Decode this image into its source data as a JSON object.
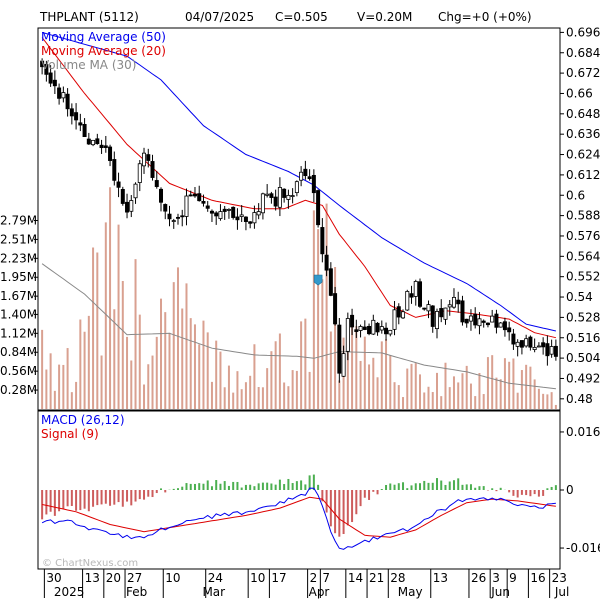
{
  "header": {
    "symbol": "THPLANT (5112)",
    "date": "04/07/2025",
    "close": "C=0.505",
    "volume": "V=0.20M",
    "change": "Chg=+0 (+0%)"
  },
  "legend": {
    "ma50": "Moving Average (50)",
    "ma20": "Moving Average (20)",
    "vol_ma": "Volume MA (30)",
    "macd": "MACD (26,12)",
    "signal": "Signal (9)"
  },
  "watermark": "© ChartNexus.com",
  "colors": {
    "up": "#ffffff",
    "down": "#000000",
    "ma50": "#0000ee",
    "ma20": "#dd0000",
    "volume_bar": "#d9a090",
    "vol_ma_line": "#888888",
    "hist_pos": "#4caf50",
    "hist_neg": "#cd5c5c",
    "marker": "#3399cc"
  },
  "chart_data": [
    {
      "type": "candlestick",
      "title": "THPLANT (5112)",
      "price_axis_ticks": [
        "0.696",
        "0.684",
        "0.672",
        "0.66",
        "0.648",
        "0.636",
        "0.624",
        "0.612",
        "0.6",
        "0.588",
        "0.576",
        "0.564",
        "0.552",
        "0.54",
        "0.528",
        "0.516",
        "0.504",
        "0.492",
        "0.48"
      ],
      "volume_axis_ticks": [
        "2.79M",
        "2.51M",
        "2.23M",
        "1.95M",
        "1.67M",
        "1.40M",
        "1.12M",
        "0.84M",
        "0.56M",
        "0.28M"
      ],
      "ylim": [
        0.474,
        0.698
      ],
      "last_close": 0.505,
      "series_names": [
        "Moving Average (50)",
        "Moving Average (20)",
        "Volume MA (30)"
      ],
      "close_keypoints": [
        {
          "day": 0,
          "close": 0.675
        },
        {
          "day": 5,
          "close": 0.655
        },
        {
          "day": 10,
          "close": 0.635
        },
        {
          "day": 15,
          "close": 0.625
        },
        {
          "day": 20,
          "close": 0.595
        },
        {
          "day": 24,
          "close": 0.622
        },
        {
          "day": 28,
          "close": 0.595
        },
        {
          "day": 32,
          "close": 0.588
        },
        {
          "day": 36,
          "close": 0.6
        },
        {
          "day": 40,
          "close": 0.59
        },
        {
          "day": 44,
          "close": 0.59
        },
        {
          "day": 48,
          "close": 0.585
        },
        {
          "day": 52,
          "close": 0.595
        },
        {
          "day": 57,
          "close": 0.6
        },
        {
          "day": 62,
          "close": 0.61
        },
        {
          "day": 64,
          "close": 0.6
        },
        {
          "day": 66,
          "close": 0.57
        },
        {
          "day": 68,
          "close": 0.54
        },
        {
          "day": 70,
          "close": 0.498
        },
        {
          "day": 72,
          "close": 0.525
        },
        {
          "day": 76,
          "close": 0.522
        },
        {
          "day": 80,
          "close": 0.52
        },
        {
          "day": 84,
          "close": 0.53
        },
        {
          "day": 88,
          "close": 0.545
        },
        {
          "day": 92,
          "close": 0.525
        },
        {
          "day": 96,
          "close": 0.54
        },
        {
          "day": 100,
          "close": 0.525
        },
        {
          "day": 104,
          "close": 0.52
        },
        {
          "day": 108,
          "close": 0.528
        },
        {
          "day": 112,
          "close": 0.515
        },
        {
          "day": 114,
          "close": 0.51
        },
        {
          "day": 118,
          "close": 0.505
        },
        {
          "day": 121,
          "close": 0.505
        }
      ],
      "ma20_keypoints": [
        {
          "day": 0,
          "value": 0.693
        },
        {
          "day": 10,
          "value": 0.66
        },
        {
          "day": 20,
          "value": 0.63
        },
        {
          "day": 30,
          "value": 0.607
        },
        {
          "day": 40,
          "value": 0.597
        },
        {
          "day": 50,
          "value": 0.592
        },
        {
          "day": 57,
          "value": 0.592
        },
        {
          "day": 62,
          "value": 0.597
        },
        {
          "day": 66,
          "value": 0.594
        },
        {
          "day": 70,
          "value": 0.577
        },
        {
          "day": 76,
          "value": 0.558
        },
        {
          "day": 82,
          "value": 0.535
        },
        {
          "day": 88,
          "value": 0.528
        },
        {
          "day": 95,
          "value": 0.532
        },
        {
          "day": 102,
          "value": 0.53
        },
        {
          "day": 110,
          "value": 0.527
        },
        {
          "day": 116,
          "value": 0.519
        },
        {
          "day": 121,
          "value": 0.516
        }
      ],
      "ma50_keypoints": [
        {
          "day": 0,
          "value": 0.696
        },
        {
          "day": 20,
          "value": 0.682
        },
        {
          "day": 28,
          "value": 0.668
        },
        {
          "day": 38,
          "value": 0.641
        },
        {
          "day": 48,
          "value": 0.624
        },
        {
          "day": 58,
          "value": 0.614
        },
        {
          "day": 64,
          "value": 0.606
        },
        {
          "day": 70,
          "value": 0.594
        },
        {
          "day": 80,
          "value": 0.575
        },
        {
          "day": 90,
          "value": 0.56
        },
        {
          "day": 100,
          "value": 0.548
        },
        {
          "day": 108,
          "value": 0.535
        },
        {
          "day": 114,
          "value": 0.524
        },
        {
          "day": 121,
          "value": 0.52
        }
      ],
      "volume_keypoints_millions": [
        {
          "day": 0,
          "value": 1.1
        },
        {
          "day": 8,
          "value": 0.8
        },
        {
          "day": 15,
          "value": 2.6
        },
        {
          "day": 20,
          "value": 1.9
        },
        {
          "day": 25,
          "value": 1.3
        },
        {
          "day": 30,
          "value": 2.05
        },
        {
          "day": 38,
          "value": 1.0
        },
        {
          "day": 45,
          "value": 0.9
        },
        {
          "day": 52,
          "value": 0.7
        },
        {
          "day": 60,
          "value": 1.0
        },
        {
          "day": 64,
          "value": 2.3
        },
        {
          "day": 66,
          "value": 2.8
        },
        {
          "day": 70,
          "value": 1.3
        },
        {
          "day": 80,
          "value": 0.8
        },
        {
          "day": 90,
          "value": 0.6
        },
        {
          "day": 100,
          "value": 0.5
        },
        {
          "day": 110,
          "value": 0.7
        },
        {
          "day": 121,
          "value": 0.2
        }
      ],
      "vol_ma_keypoints_millions": [
        {
          "day": 0,
          "value": 2.15
        },
        {
          "day": 10,
          "value": 1.7
        },
        {
          "day": 20,
          "value": 1.1
        },
        {
          "day": 30,
          "value": 1.12
        },
        {
          "day": 40,
          "value": 0.9
        },
        {
          "day": 50,
          "value": 0.8
        },
        {
          "day": 60,
          "value": 0.78
        },
        {
          "day": 64,
          "value": 0.75
        },
        {
          "day": 70,
          "value": 0.85
        },
        {
          "day": 80,
          "value": 0.83
        },
        {
          "day": 90,
          "value": 0.65
        },
        {
          "day": 100,
          "value": 0.55
        },
        {
          "day": 110,
          "value": 0.38
        },
        {
          "day": 121,
          "value": 0.3
        }
      ]
    },
    {
      "type": "macd",
      "title": "MACD (26,12)",
      "y_ticks": [
        "0.016",
        "0",
        "-0.016"
      ],
      "ylim": [
        -0.0215,
        0.0215
      ],
      "series_names": [
        "MACD (26,12)",
        "Signal (9)"
      ],
      "macd_keypoints": [
        {
          "day": 0,
          "value": -0.009
        },
        {
          "day": 5,
          "value": -0.0085
        },
        {
          "day": 10,
          "value": -0.01
        },
        {
          "day": 15,
          "value": -0.012
        },
        {
          "day": 20,
          "value": -0.013
        },
        {
          "day": 24,
          "value": -0.0135
        },
        {
          "day": 28,
          "value": -0.011
        },
        {
          "day": 35,
          "value": -0.008
        },
        {
          "day": 42,
          "value": -0.007
        },
        {
          "day": 48,
          "value": -0.006
        },
        {
          "day": 55,
          "value": -0.004
        },
        {
          "day": 62,
          "value": -0.001
        },
        {
          "day": 64,
          "value": 0.001
        },
        {
          "day": 66,
          "value": -0.004
        },
        {
          "day": 68,
          "value": -0.011
        },
        {
          "day": 70,
          "value": -0.0165
        },
        {
          "day": 74,
          "value": -0.015
        },
        {
          "day": 80,
          "value": -0.0125
        },
        {
          "day": 86,
          "value": -0.011
        },
        {
          "day": 90,
          "value": -0.008
        },
        {
          "day": 95,
          "value": -0.005
        },
        {
          "day": 100,
          "value": -0.002
        },
        {
          "day": 105,
          "value": -0.0025
        },
        {
          "day": 110,
          "value": -0.003
        },
        {
          "day": 115,
          "value": -0.005
        },
        {
          "day": 121,
          "value": -0.004
        }
      ],
      "signal_keypoints": [
        {
          "day": 0,
          "value": -0.004
        },
        {
          "day": 8,
          "value": -0.006
        },
        {
          "day": 16,
          "value": -0.0095
        },
        {
          "day": 24,
          "value": -0.0115
        },
        {
          "day": 32,
          "value": -0.01
        },
        {
          "day": 40,
          "value": -0.0085
        },
        {
          "day": 48,
          "value": -0.007
        },
        {
          "day": 56,
          "value": -0.005
        },
        {
          "day": 63,
          "value": -0.002
        },
        {
          "day": 66,
          "value": -0.0025
        },
        {
          "day": 70,
          "value": -0.008
        },
        {
          "day": 76,
          "value": -0.0125
        },
        {
          "day": 82,
          "value": -0.013
        },
        {
          "day": 88,
          "value": -0.011
        },
        {
          "day": 94,
          "value": -0.007
        },
        {
          "day": 100,
          "value": -0.0035
        },
        {
          "day": 106,
          "value": -0.0025
        },
        {
          "day": 112,
          "value": -0.003
        },
        {
          "day": 121,
          "value": -0.0045
        }
      ]
    }
  ],
  "x_axis": {
    "ticks": [
      {
        "label": "30",
        "day": 1
      },
      {
        "label": "13",
        "day": 10
      },
      {
        "label": "20",
        "day": 15
      },
      {
        "label": "27",
        "day": 20
      },
      {
        "label": "10",
        "day": 29
      },
      {
        "label": "24",
        "day": 39
      },
      {
        "label": "10",
        "day": 49
      },
      {
        "label": "17",
        "day": 54
      },
      {
        "label": "2",
        "day": 63
      },
      {
        "label": "7",
        "day": 66
      },
      {
        "label": "14",
        "day": 72
      },
      {
        "label": "21",
        "day": 77
      },
      {
        "label": "28",
        "day": 82
      },
      {
        "label": "13",
        "day": 92
      },
      {
        "label": "26",
        "day": 101
      },
      {
        "label": "3",
        "day": 106
      },
      {
        "label": "9",
        "day": 110
      },
      {
        "label": "16",
        "day": 115
      },
      {
        "label": "23",
        "day": 120
      }
    ],
    "months": [
      {
        "label": "2025",
        "day": 3
      },
      {
        "label": "Feb",
        "day": 20
      },
      {
        "label": "Mar",
        "day": 38
      },
      {
        "label": "Apr",
        "day": 63
      },
      {
        "label": "May",
        "day": 84
      },
      {
        "label": "Jun",
        "day": 106
      },
      {
        "label": "Jul",
        "day": 121
      }
    ]
  }
}
